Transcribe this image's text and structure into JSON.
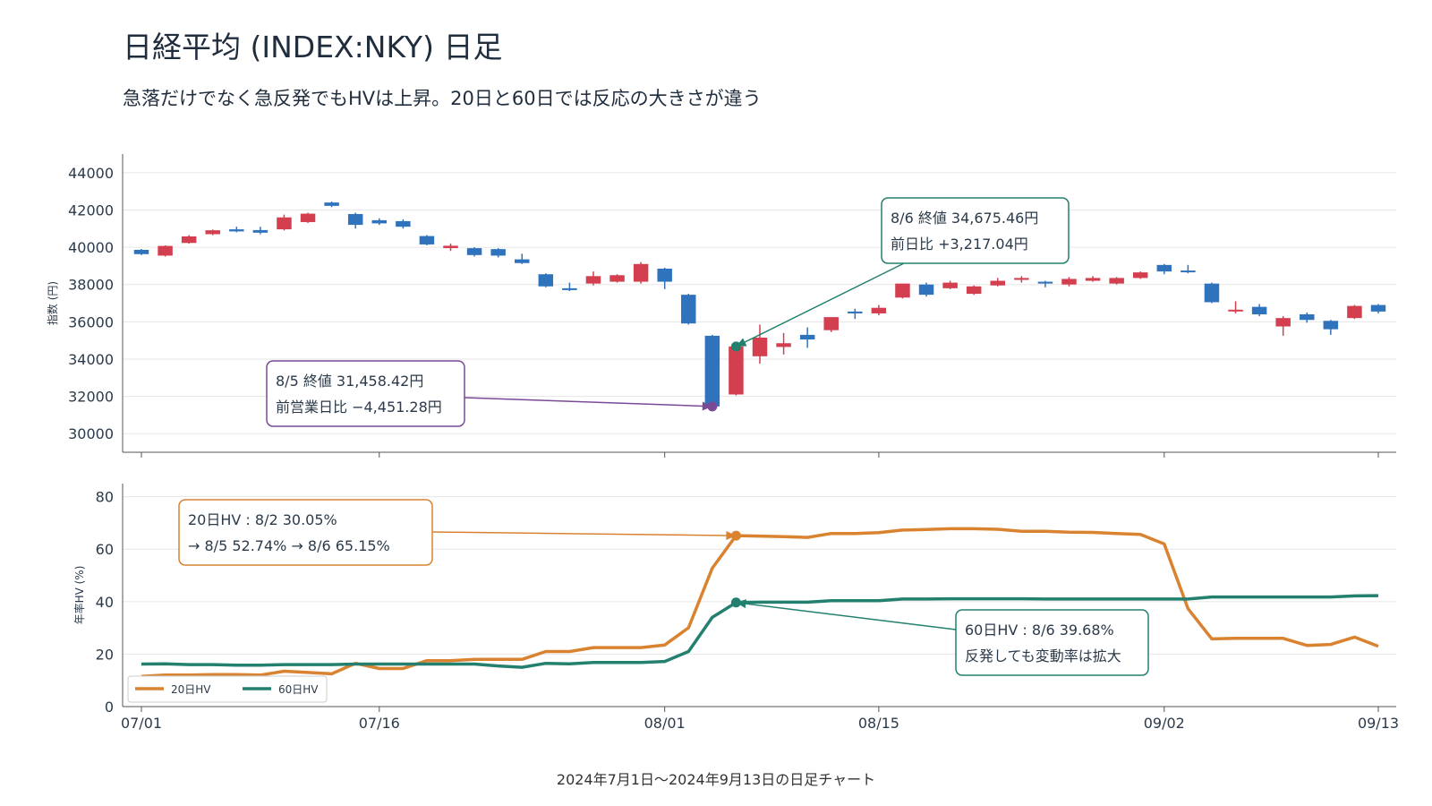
{
  "title": "日経平均 (INDEX:NKY)  日足",
  "subtitle": "急落だけでなく急反発でもHVは上昇。20日と60日では反応の大きさが違う",
  "caption": "2024年7月1日〜2024年9月13日の日足チャート",
  "colors": {
    "up": "#d33f4f",
    "down": "#2f73bd",
    "hv20": "#d98330",
    "hv60": "#23806f",
    "ann_purple": "#7a4a97",
    "grid": "#e6e6e6",
    "axis": "#555555"
  },
  "chart_data": [
    {
      "type": "candlestick",
      "ylabel": "指数 (円)",
      "ylim": [
        29000,
        45000
      ],
      "yticks": [
        30000,
        32000,
        34000,
        36000,
        38000,
        40000,
        42000,
        44000
      ],
      "x_ticks": [
        {
          "date": "2024-07-01",
          "label": "07/01"
        },
        {
          "date": "2024-07-16",
          "label": "07/16"
        },
        {
          "date": "2024-08-01",
          "label": "08/01"
        },
        {
          "date": "2024-08-15",
          "label": "08/15"
        },
        {
          "date": "2024-09-02",
          "label": "09/02"
        },
        {
          "date": "2024-09-13",
          "label": "09/13"
        }
      ],
      "candles": [
        {
          "date": "2024-07-01",
          "open": 39860,
          "high": 39900,
          "low": 39580,
          "close": 39630
        },
        {
          "date": "2024-07-02",
          "open": 39550,
          "high": 40100,
          "low": 39500,
          "close": 40070
        },
        {
          "date": "2024-07-03",
          "open": 40230,
          "high": 40650,
          "low": 40190,
          "close": 40580
        },
        {
          "date": "2024-07-04",
          "open": 40700,
          "high": 40950,
          "low": 40650,
          "close": 40910
        },
        {
          "date": "2024-07-05",
          "open": 40960,
          "high": 41100,
          "low": 40800,
          "close": 40850
        },
        {
          "date": "2024-07-08",
          "open": 40920,
          "high": 41100,
          "low": 40700,
          "close": 40780
        },
        {
          "date": "2024-07-09",
          "open": 40960,
          "high": 41750,
          "low": 40900,
          "close": 41600
        },
        {
          "date": "2024-07-10",
          "open": 41350,
          "high": 41850,
          "low": 41300,
          "close": 41800
        },
        {
          "date": "2024-07-11",
          "open": 42400,
          "high": 42450,
          "low": 42150,
          "close": 42220
        },
        {
          "date": "2024-07-12",
          "open": 41780,
          "high": 41850,
          "low": 41000,
          "close": 41200
        },
        {
          "date": "2024-07-16",
          "open": 41450,
          "high": 41550,
          "low": 41200,
          "close": 41280
        },
        {
          "date": "2024-07-17",
          "open": 41400,
          "high": 41500,
          "low": 41000,
          "close": 41100
        },
        {
          "date": "2024-07-18",
          "open": 40600,
          "high": 40650,
          "low": 40100,
          "close": 40150
        },
        {
          "date": "2024-07-19",
          "open": 39950,
          "high": 40200,
          "low": 39800,
          "close": 40080
        },
        {
          "date": "2024-07-22",
          "open": 39950,
          "high": 40000,
          "low": 39500,
          "close": 39580
        },
        {
          "date": "2024-07-23",
          "open": 39900,
          "high": 39950,
          "low": 39450,
          "close": 39550
        },
        {
          "date": "2024-07-24",
          "open": 39350,
          "high": 39650,
          "low": 39100,
          "close": 39150
        },
        {
          "date": "2024-07-25",
          "open": 38550,
          "high": 38600,
          "low": 37850,
          "close": 37900
        },
        {
          "date": "2024-07-26",
          "open": 37800,
          "high": 38100,
          "low": 37650,
          "close": 37700
        },
        {
          "date": "2024-07-29",
          "open": 38050,
          "high": 38700,
          "low": 37950,
          "close": 38450
        },
        {
          "date": "2024-07-30",
          "open": 38150,
          "high": 38550,
          "low": 38100,
          "close": 38500
        },
        {
          "date": "2024-07-31",
          "open": 38150,
          "high": 39200,
          "low": 38050,
          "close": 39100
        },
        {
          "date": "2024-08-01",
          "open": 38850,
          "high": 38900,
          "low": 37750,
          "close": 38150
        },
        {
          "date": "2024-08-02",
          "open": 37450,
          "high": 37500,
          "low": 35850,
          "close": 35910
        },
        {
          "date": "2024-08-05",
          "open": 35250,
          "high": 35300,
          "low": 31450,
          "close": 31458
        },
        {
          "date": "2024-08-06",
          "open": 32100,
          "high": 34900,
          "low": 32050,
          "close": 34675
        },
        {
          "date": "2024-08-07",
          "open": 34150,
          "high": 35850,
          "low": 33750,
          "close": 35150
        },
        {
          "date": "2024-08-08",
          "open": 34650,
          "high": 35400,
          "low": 34250,
          "close": 34850
        },
        {
          "date": "2024-08-09",
          "open": 35300,
          "high": 35700,
          "low": 34600,
          "close": 35050
        },
        {
          "date": "2024-08-13",
          "open": 35550,
          "high": 36250,
          "low": 35450,
          "close": 36250
        },
        {
          "date": "2024-08-14",
          "open": 36550,
          "high": 36700,
          "low": 36150,
          "close": 36450
        },
        {
          "date": "2024-08-15",
          "open": 36450,
          "high": 36900,
          "low": 36350,
          "close": 36750
        },
        {
          "date": "2024-08-16",
          "open": 37300,
          "high": 38050,
          "low": 37250,
          "close": 38050
        },
        {
          "date": "2024-08-19",
          "open": 38000,
          "high": 38100,
          "low": 37350,
          "close": 37450
        },
        {
          "date": "2024-08-20",
          "open": 37800,
          "high": 38200,
          "low": 37750,
          "close": 38100
        },
        {
          "date": "2024-08-21",
          "open": 37500,
          "high": 37950,
          "low": 37450,
          "close": 37900
        },
        {
          "date": "2024-08-22",
          "open": 37950,
          "high": 38350,
          "low": 37900,
          "close": 38200
        },
        {
          "date": "2024-08-23",
          "open": 38250,
          "high": 38450,
          "low": 38100,
          "close": 38350
        },
        {
          "date": "2024-08-26",
          "open": 38150,
          "high": 38200,
          "low": 37850,
          "close": 38050
        },
        {
          "date": "2024-08-27",
          "open": 38000,
          "high": 38400,
          "low": 37900,
          "close": 38300
        },
        {
          "date": "2024-08-28",
          "open": 38200,
          "high": 38450,
          "low": 38150,
          "close": 38350
        },
        {
          "date": "2024-08-29",
          "open": 38050,
          "high": 38400,
          "low": 38000,
          "close": 38350
        },
        {
          "date": "2024-08-30",
          "open": 38350,
          "high": 38700,
          "low": 38300,
          "close": 38650
        },
        {
          "date": "2024-09-02",
          "open": 39050,
          "high": 39100,
          "low": 38550,
          "close": 38700
        },
        {
          "date": "2024-09-03",
          "open": 38750,
          "high": 39050,
          "low": 38600,
          "close": 38700
        },
        {
          "date": "2024-09-04",
          "open": 38050,
          "high": 38100,
          "low": 37000,
          "close": 37050
        },
        {
          "date": "2024-09-05",
          "open": 36600,
          "high": 37100,
          "low": 36450,
          "close": 36650
        },
        {
          "date": "2024-09-06",
          "open": 36800,
          "high": 36950,
          "low": 36300,
          "close": 36400
        },
        {
          "date": "2024-09-09",
          "open": 35750,
          "high": 36300,
          "low": 35250,
          "close": 36200
        },
        {
          "date": "2024-09-10",
          "open": 36400,
          "high": 36500,
          "low": 35950,
          "close": 36100
        },
        {
          "date": "2024-09-11",
          "open": 36050,
          "high": 36100,
          "low": 35300,
          "close": 35600
        },
        {
          "date": "2024-09-12",
          "open": 36200,
          "high": 36900,
          "low": 36150,
          "close": 36850
        },
        {
          "date": "2024-09-13",
          "open": 36900,
          "high": 36950,
          "low": 36450,
          "close": 36550
        }
      ],
      "annotations": [
        {
          "lines": [
            "8/5 終値 31,458.42円",
            "前営業日比 −4,451.28円"
          ],
          "date": "2024-08-05",
          "value": 31458.42,
          "color": "#7a4a97"
        },
        {
          "lines": [
            "8/6 終値 34,675.46円",
            "前日比 +3,217.04円"
          ],
          "date": "2024-08-06",
          "value": 34675.46,
          "color": "#23806f"
        }
      ]
    },
    {
      "type": "line",
      "ylabel": "年率HV (%)",
      "ylim": [
        0,
        85
      ],
      "yticks": [
        0,
        20,
        40,
        60,
        80
      ],
      "legend_placement": "bottom-left",
      "series": [
        {
          "name": "20日HV",
          "color": "#d98330",
          "values": [
            11.5,
            12.0,
            12.0,
            12.2,
            12.2,
            12.0,
            13.5,
            13.0,
            12.5,
            16.5,
            14.5,
            14.5,
            17.5,
            17.5,
            18.0,
            18.0,
            18.0,
            21.0,
            21.0,
            22.5,
            22.5,
            22.5,
            23.5,
            30.05,
            52.74,
            65.15,
            65.0,
            64.8,
            64.5,
            66.0,
            66.0,
            66.3,
            67.3,
            67.5,
            67.8,
            67.8,
            67.6,
            66.8,
            66.8,
            66.5,
            66.4,
            66.0,
            65.6,
            62.0,
            37.3,
            25.8,
            26.0,
            26.0,
            26.0,
            23.3,
            23.7,
            26.5,
            23.0
          ]
        },
        {
          "name": "60日HV",
          "color": "#23806f",
          "values": [
            16.2,
            16.3,
            16.0,
            16.0,
            15.8,
            15.8,
            16.0,
            16.0,
            16.0,
            16.2,
            16.2,
            16.2,
            16.2,
            16.2,
            16.2,
            15.5,
            15.0,
            16.5,
            16.3,
            16.8,
            16.8,
            16.8,
            17.2,
            21.0,
            34.0,
            39.68,
            39.8,
            39.8,
            39.8,
            40.4,
            40.4,
            40.4,
            41.0,
            41.0,
            41.1,
            41.1,
            41.1,
            41.1,
            41.0,
            41.0,
            41.0,
            41.0,
            41.0,
            41.0,
            41.0,
            41.8,
            41.8,
            41.8,
            41.8,
            41.8,
            41.8,
            42.2,
            42.3
          ]
        }
      ],
      "annotations": [
        {
          "lines": [
            "20日HV : 8/2 30.05%",
            "→ 8/5 52.74% → 8/6 65.15%"
          ],
          "date": "2024-08-06",
          "value": 65.15,
          "color": "#d98330"
        },
        {
          "lines": [
            "60日HV : 8/6 39.68%",
            "反発しても変動率は拡大"
          ],
          "date": "2024-08-06",
          "value": 39.68,
          "color": "#23806f"
        }
      ]
    }
  ]
}
